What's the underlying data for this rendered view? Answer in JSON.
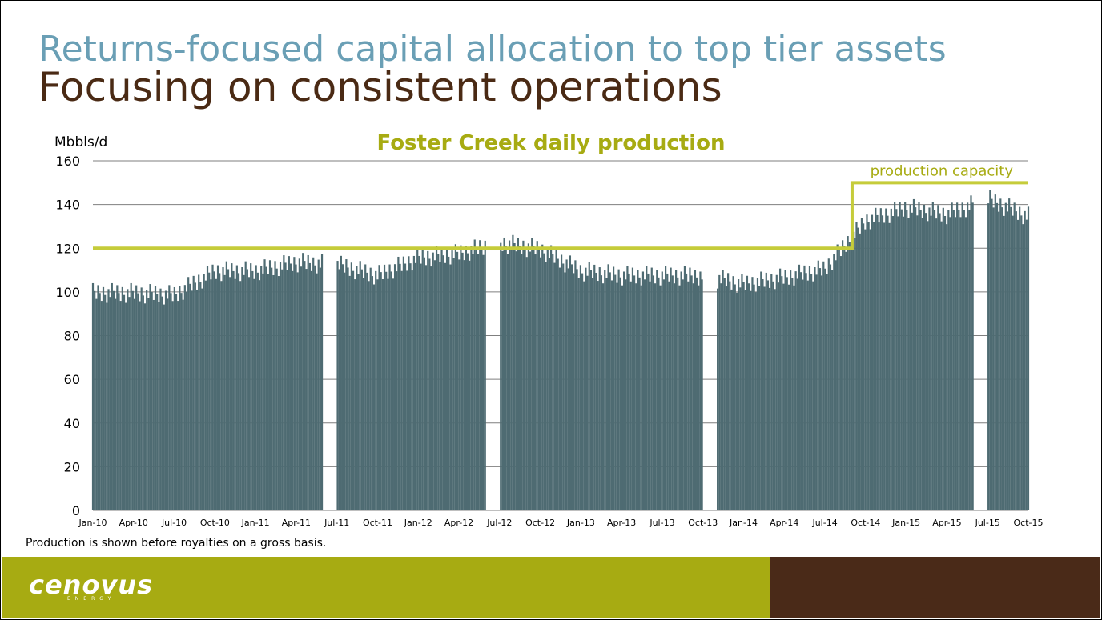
{
  "slide": {
    "title_line1": "Returns-focused capital allocation to top tier assets",
    "title_line2": "Focusing on consistent operations",
    "footnote": "Production is shown before royalties on a gross basis.",
    "logo": "cenovus",
    "logo_sub": "ENERGY"
  },
  "colors": {
    "title1": "#6a9fb5",
    "title2": "#4a2a14",
    "chart_title": "#a7ab12",
    "bars": "#4e6b72",
    "capacity_line": "#c5cc3a",
    "footer_left": "#a7ab12",
    "footer_right": "#4a2a18"
  },
  "chart_data": {
    "type": "bar",
    "title": "Foster Creek daily production",
    "ylabel": "Mbbls/d",
    "xlabel": "",
    "ylim": [
      0,
      160
    ],
    "yticks": [
      0,
      20,
      40,
      60,
      80,
      100,
      120,
      140,
      160
    ],
    "grid": true,
    "categories": [
      "Jan-10",
      "Apr-10",
      "Jul-10",
      "Oct-10",
      "Jan-11",
      "Apr-11",
      "Jul-11",
      "Oct-11",
      "Jan-12",
      "Apr-12",
      "Jul-12",
      "Oct-12",
      "Jan-13",
      "Apr-13",
      "Jul-13",
      "Oct-13",
      "Jan-14",
      "Apr-14",
      "Jul-14",
      "Oct-14",
      "Jan-15",
      "Apr-15",
      "Jul-15",
      "Oct-15"
    ],
    "series": [
      {
        "values": [
          104,
          104,
          103,
          114,
          114,
          118,
          117,
          112,
          120,
          122,
          127,
          124,
          114,
          112,
          112,
          112,
          108,
          111,
          115,
          137,
          143,
          140,
          147,
          139
        ],
        "outages": [
          {
            "from": "Jun-11",
            "to": "Jun-11"
          },
          {
            "from": "Jun-12",
            "to": "Jun-12"
          },
          {
            "from": "Oct-13",
            "to": "Oct-13"
          },
          {
            "from": "Jun-15",
            "to": "Jun-15"
          }
        ]
      }
    ],
    "capacity": {
      "label": "production capacity",
      "segments": [
        {
          "from": "Jan-10",
          "to": "Sep-14",
          "value": 120
        },
        {
          "from": "Sep-14",
          "to": "Oct-15",
          "value": 150
        }
      ]
    }
  }
}
